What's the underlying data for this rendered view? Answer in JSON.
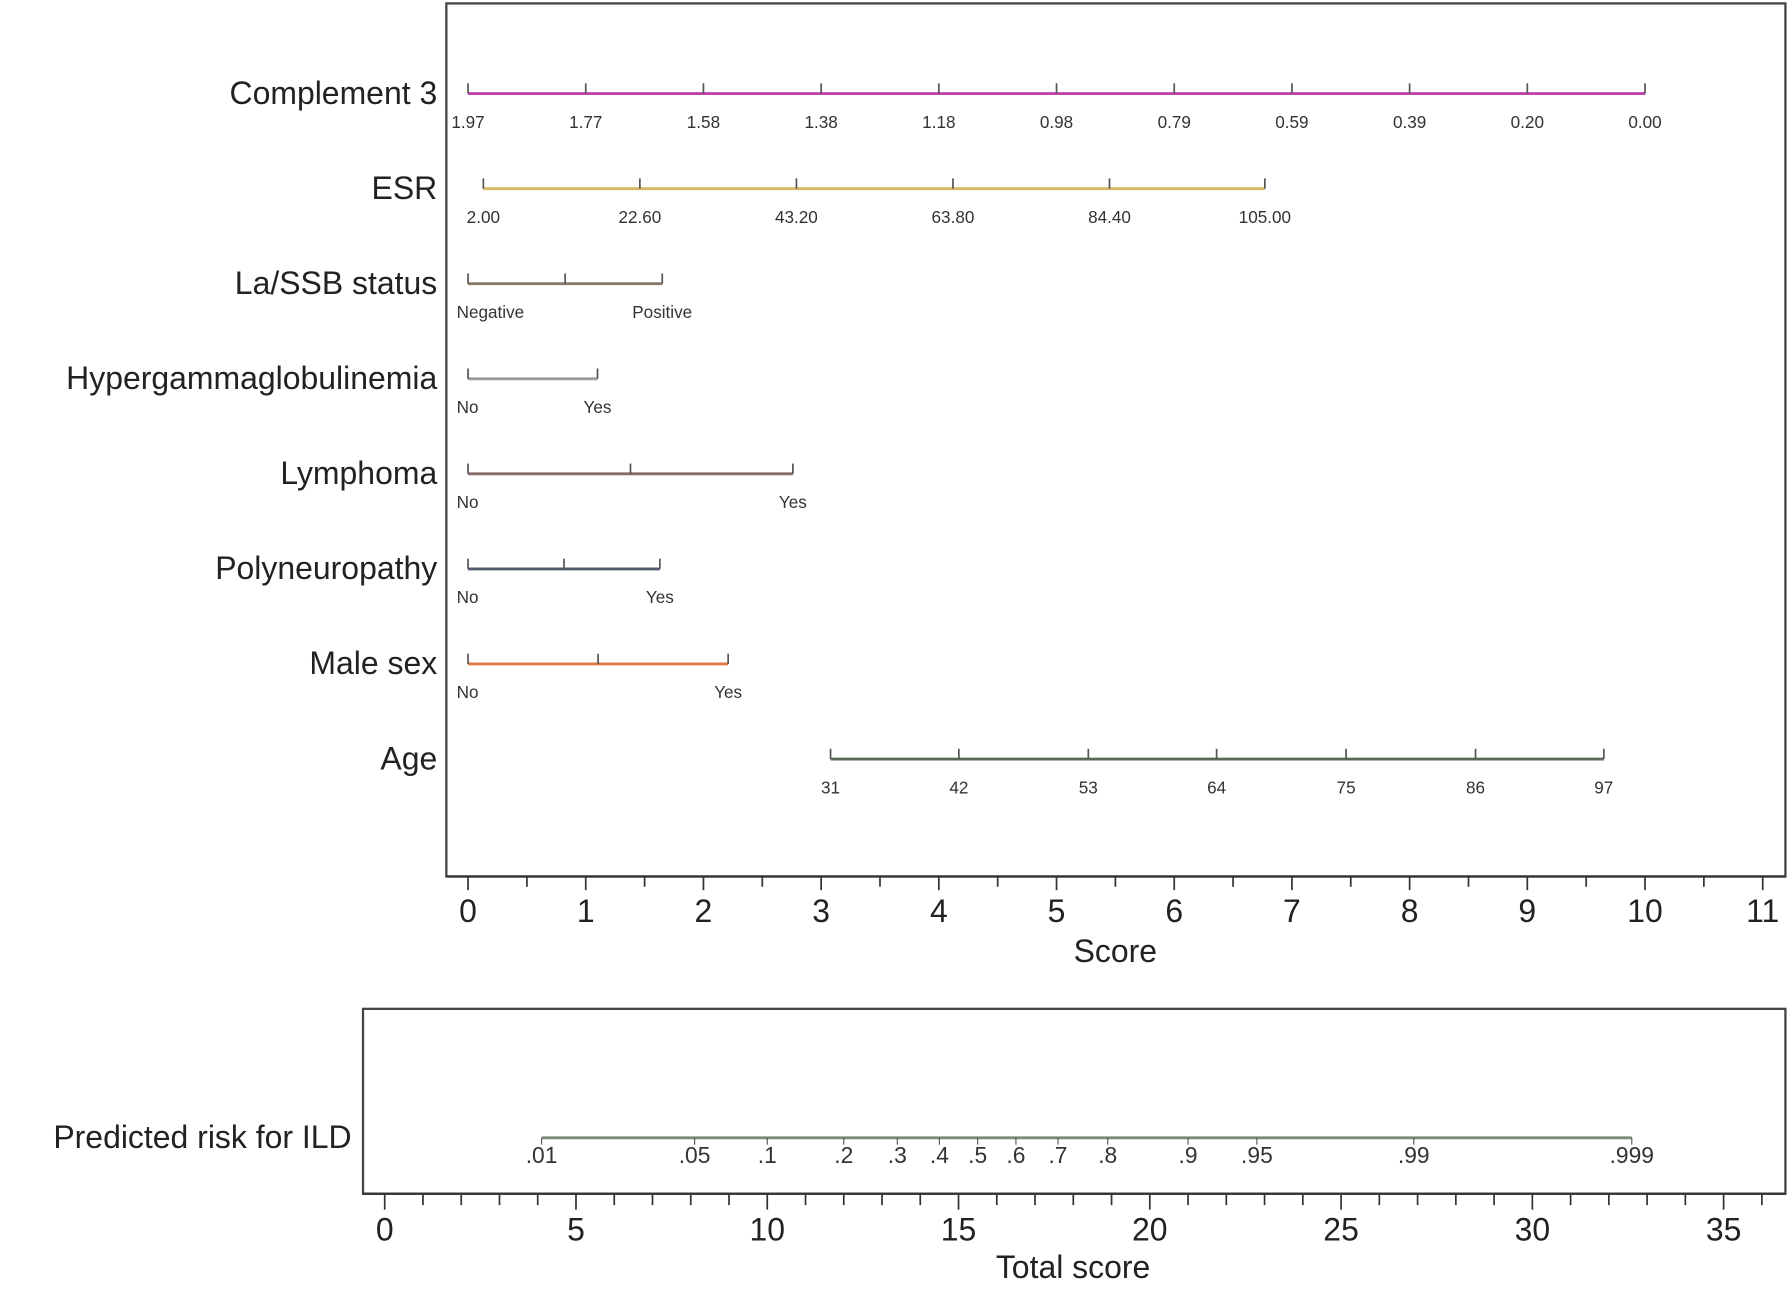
{
  "chart_data": {
    "type": "nomogram",
    "top_panel": {
      "xlabel": "Score",
      "xlim": [
        0,
        11
      ],
      "major_ticks": [
        0,
        1,
        2,
        3,
        4,
        5,
        6,
        7,
        8,
        9,
        10,
        11
      ],
      "minor_step": 0.5,
      "variables": [
        {
          "name": "Complement 3",
          "color": "#c040b0",
          "points": [
            {
              "label": "1.97",
              "score": 0
            },
            {
              "label": "1.77",
              "score": 1
            },
            {
              "label": "1.58",
              "score": 2
            },
            {
              "label": "1.38",
              "score": 3
            },
            {
              "label": "1.18",
              "score": 4
            },
            {
              "label": "0.98",
              "score": 5
            },
            {
              "label": "0.79",
              "score": 6
            },
            {
              "label": "0.59",
              "score": 7
            },
            {
              "label": "0.39",
              "score": 8
            },
            {
              "label": "0.20",
              "score": 9
            },
            {
              "label": "0.00",
              "score": 10
            }
          ],
          "extra_ticks": []
        },
        {
          "name": "ESR",
          "color": "#d9b860",
          "points": [
            {
              "label": "2.00",
              "score": 0.13
            },
            {
              "label": "22.60",
              "score": 1.46
            },
            {
              "label": "43.20",
              "score": 2.79
            },
            {
              "label": "63.80",
              "score": 4.12
            },
            {
              "label": "84.40",
              "score": 5.45
            },
            {
              "label": "105.00",
              "score": 6.77
            }
          ],
          "extra_ticks": []
        },
        {
          "name": "La/SSB status",
          "color": "#8a7a6a",
          "points": [
            {
              "label": "Negative",
              "score": 0
            },
            {
              "label": "Positive",
              "score": 1.65
            }
          ],
          "extra_ticks": [
            0.825
          ]
        },
        {
          "name": "Hypergammaglobulinemia",
          "color": "#9a9a9a",
          "points": [
            {
              "label": "No",
              "score": 0
            },
            {
              "label": "Yes",
              "score": 1.1
            }
          ],
          "extra_ticks": []
        },
        {
          "name": "Lymphoma",
          "color": "#8a6a6a",
          "points": [
            {
              "label": "No",
              "score": 0
            },
            {
              "label": "Yes",
              "score": 2.76
            }
          ],
          "extra_ticks": [
            1.38
          ]
        },
        {
          "name": "Polyneuropathy",
          "color": "#505a6a",
          "points": [
            {
              "label": "No",
              "score": 0
            },
            {
              "label": "Yes",
              "score": 1.63
            }
          ],
          "extra_ticks": [
            0.815
          ]
        },
        {
          "name": "Male sex",
          "color": "#e07a40",
          "points": [
            {
              "label": "No",
              "score": 0
            },
            {
              "label": "Yes",
              "score": 2.21
            }
          ],
          "extra_ticks": [
            1.105
          ]
        },
        {
          "name": "Age",
          "color": "#5a6a5a",
          "points": [
            {
              "label": "31",
              "score": 3.08
            },
            {
              "label": "42",
              "score": 4.17
            },
            {
              "label": "53",
              "score": 5.27
            },
            {
              "label": "64",
              "score": 6.36
            },
            {
              "label": "75",
              "score": 7.46
            },
            {
              "label": "86",
              "score": 8.56
            },
            {
              "label": "97",
              "score": 9.65
            }
          ],
          "extra_ticks": []
        }
      ]
    },
    "bottom_panel": {
      "xlabel": "Total score",
      "xlim": [
        0,
        36
      ],
      "major_ticks": [
        0,
        5,
        10,
        15,
        20,
        25,
        30,
        35
      ],
      "minor_step": 1,
      "risk_scale": {
        "name": "Predicted risk for ILD",
        "color": "#7a8a7a",
        "points": [
          {
            "label": ".01",
            "total": 4.1
          },
          {
            "label": ".05",
            "total": 8.1
          },
          {
            "label": ".1",
            "total": 10.0
          },
          {
            "label": ".2",
            "total": 12.0
          },
          {
            "label": ".3",
            "total": 13.4
          },
          {
            "label": ".4",
            "total": 14.5
          },
          {
            "label": ".5",
            "total": 15.5
          },
          {
            "label": ".6",
            "total": 16.5
          },
          {
            "label": ".7",
            "total": 17.6
          },
          {
            "label": ".8",
            "total": 18.9
          },
          {
            "label": ".9",
            "total": 21.0
          },
          {
            "label": ".95",
            "total": 22.8
          },
          {
            "label": ".99",
            "total": 26.9
          },
          {
            "label": ".999",
            "total": 32.6
          }
        ]
      }
    }
  }
}
